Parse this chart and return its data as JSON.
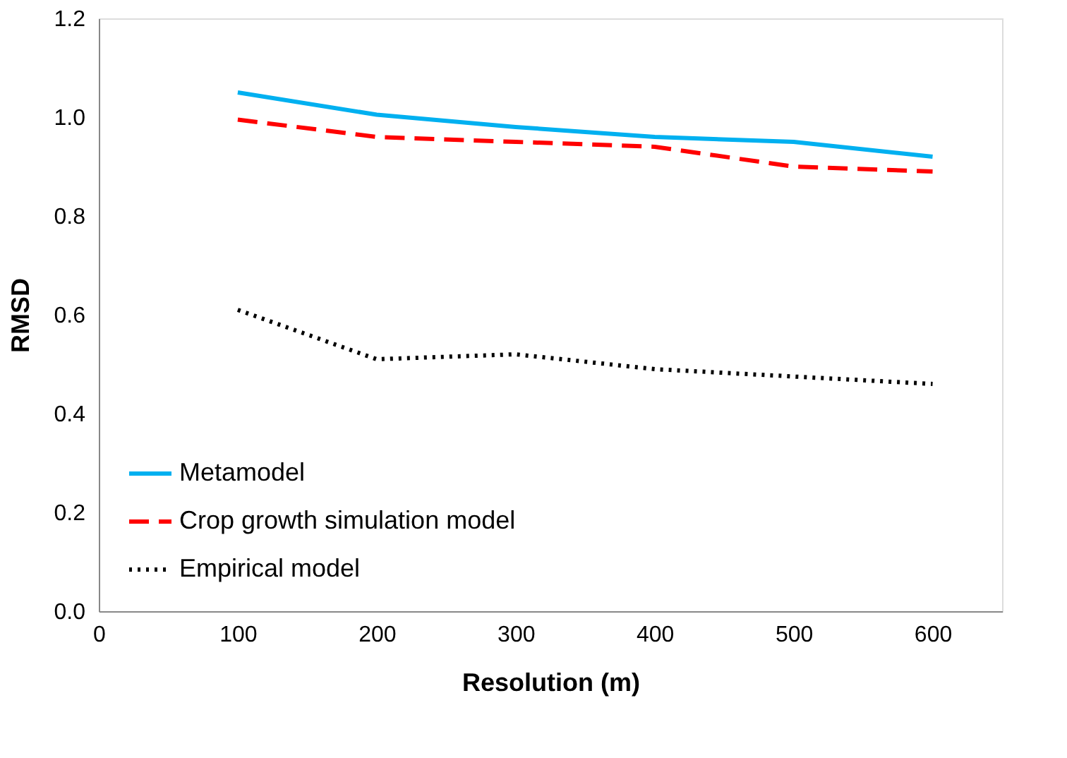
{
  "chart_data": {
    "type": "line",
    "xlabel": "Resolution (m)",
    "ylabel": "RMSD",
    "x": [
      100,
      200,
      300,
      400,
      500,
      600
    ],
    "series": [
      {
        "name": "Metamodel",
        "color": "#00b0f0",
        "line_style": "solid",
        "values": [
          1.05,
          1.005,
          0.98,
          0.96,
          0.95,
          0.92
        ]
      },
      {
        "name": "Crop growth simulation model",
        "color": "#ff0000",
        "line_style": "dashed",
        "values": [
          0.995,
          0.96,
          0.95,
          0.94,
          0.9,
          0.89
        ]
      },
      {
        "name": "Empirical model",
        "color": "#000000",
        "line_style": "dotted",
        "values": [
          0.61,
          0.51,
          0.52,
          0.49,
          0.475,
          0.46
        ]
      }
    ],
    "xlim": [
      0,
      650
    ],
    "xticks": [
      0,
      100,
      200,
      300,
      400,
      500,
      600
    ],
    "ylim": [
      0,
      1.2
    ],
    "yticks": [
      {
        "value": 0,
        "label": "0.0"
      },
      0.2,
      0.4,
      0.6,
      0.8,
      {
        "value": 1,
        "label": "1.0"
      },
      1.2
    ],
    "grid": false,
    "legend": "bottom left",
    "marker": "none"
  }
}
